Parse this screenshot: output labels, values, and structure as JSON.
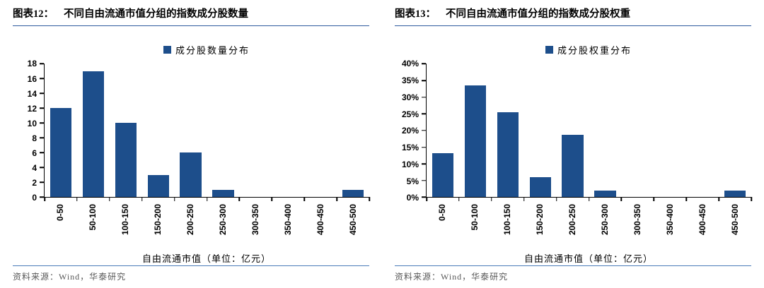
{
  "page": {
    "background": "#ffffff"
  },
  "colors": {
    "bar": "#1D4E8B",
    "title_underline": "#2F5C9E",
    "source_divider": "#4B7BB8",
    "source_text": "#595959",
    "axis": "#000000"
  },
  "panels": [
    {
      "figure_label": "图表12：",
      "title": "不同自由流通市值分组的指数成分股数量",
      "source": "资料来源：Wind，华泰研究"
    },
    {
      "figure_label": "图表13：",
      "title": "不同自由流通市值分组的指数成分股权重",
      "source": "资料来源：Wind，华泰研究"
    }
  ],
  "chart_data": [
    {
      "type": "bar",
      "title": "不同自由流通市值分组的指数成分股数量",
      "legend": [
        "成分股数量分布"
      ],
      "legend_position": "top-center",
      "categories": [
        "0-50",
        "50-100",
        "100-150",
        "150-200",
        "200-250",
        "250-300",
        "300-350",
        "350-400",
        "400-450",
        "450-500"
      ],
      "values": [
        12,
        17,
        10,
        3,
        6,
        1,
        0,
        0,
        0,
        1
      ],
      "xlabel": "自由流通市值（单位：亿元）",
      "ylabel": "",
      "ylim": [
        0,
        18
      ],
      "ytick_step": 2,
      "ytick_labels": [
        "0",
        "2",
        "4",
        "6",
        "8",
        "10",
        "12",
        "14",
        "16",
        "18"
      ],
      "value_format": "integer",
      "grid": false,
      "bar_color": "#1D4E8B"
    },
    {
      "type": "bar",
      "title": "不同自由流通市值分组的指数成分股权重",
      "legend": [
        "成分股权重分布"
      ],
      "legend_position": "top-center",
      "categories": [
        "0-50",
        "50-100",
        "100-150",
        "150-200",
        "200-250",
        "250-300",
        "300-350",
        "350-400",
        "400-450",
        "450-500"
      ],
      "values": [
        13.2,
        33.5,
        25.5,
        6.0,
        18.7,
        2.0,
        0,
        0,
        0,
        2.0
      ],
      "xlabel": "自由流通市值（单位：亿元）",
      "ylabel": "",
      "ylim": [
        0,
        40
      ],
      "ytick_step": 5,
      "ytick_labels": [
        "0%",
        "5%",
        "10%",
        "15%",
        "20%",
        "25%",
        "30%",
        "35%",
        "40%"
      ],
      "value_format": "percent",
      "grid": false,
      "bar_color": "#1D4E8B"
    }
  ]
}
